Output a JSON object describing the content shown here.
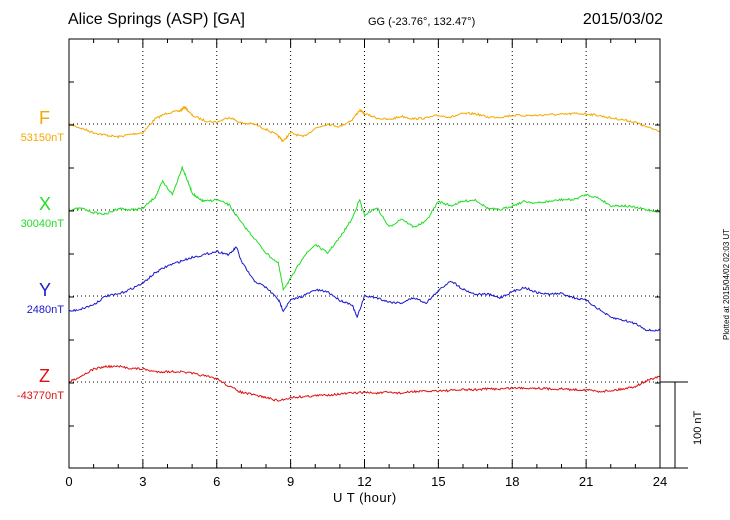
{
  "header": {
    "station": "Alice Springs (ASP)  [GA]",
    "coords": "GG (-23.76°, 132.47°)",
    "date": "2015/03/02"
  },
  "side_note": "Plotted at 2015/04/02 02:03 UT",
  "scale_bar": {
    "label": "100 nT",
    "value_nT": 100
  },
  "chart_data": {
    "type": "line",
    "title": "Alice Springs (ASP)  [GA]",
    "xlabel": "U T (hour)",
    "ylabel": "",
    "xlim": [
      0,
      24
    ],
    "xticks": [
      0,
      3,
      6,
      9,
      12,
      15,
      18,
      21,
      24
    ],
    "grid": true,
    "series": [
      {
        "name": "F",
        "baseline_label": "53150nT",
        "baseline": 53150,
        "color": "#f5a800",
        "x": [
          0,
          0.5,
          1,
          1.5,
          2,
          2.5,
          3,
          3.5,
          4,
          4.5,
          4.7,
          5,
          5.5,
          6,
          6.5,
          7,
          7.5,
          8,
          8.5,
          8.7,
          9,
          9.5,
          10,
          10.5,
          11,
          11.5,
          11.8,
          12,
          12.5,
          13,
          13.5,
          14,
          14.5,
          15,
          15.5,
          16,
          16.5,
          17,
          17.5,
          18,
          18.5,
          19,
          19.5,
          20,
          20.5,
          21,
          21.5,
          22,
          22.5,
          23,
          23.5,
          24
        ],
        "values": [
          53150,
          53145,
          53140,
          53137,
          53135,
          53138,
          53140,
          53156,
          53163,
          53165,
          53170,
          53160,
          53154,
          53152,
          53158,
          53151,
          53150,
          53144,
          53136,
          53130,
          53140,
          53135,
          53145,
          53150,
          53147,
          53155,
          53166,
          53162,
          53157,
          53155,
          53159,
          53156,
          53157,
          53160,
          53158,
          53162,
          53162,
          53158,
          53158,
          53160,
          53160,
          53160,
          53161,
          53161,
          53162,
          53162,
          53160,
          53157,
          53155,
          53152,
          53146,
          53142
        ]
      },
      {
        "name": "X",
        "baseline_label": "30040nT",
        "baseline": 30040,
        "color": "#22dd22",
        "x": [
          0,
          0.5,
          1,
          1.5,
          2,
          2.5,
          3,
          3.5,
          3.8,
          4.2,
          4.6,
          4.8,
          5,
          5.3,
          5.5,
          6,
          6.5,
          7,
          7.5,
          8,
          8.5,
          8.7,
          9,
          9.5,
          10,
          10.5,
          11,
          11.5,
          11.8,
          12,
          12.5,
          13,
          13.5,
          14,
          14.5,
          15,
          15.5,
          16,
          16.5,
          17,
          17.5,
          18,
          18.5,
          19,
          19.5,
          20,
          20.5,
          21,
          21.5,
          22,
          22.5,
          23,
          23.5,
          24
        ],
        "values": [
          30040,
          30042,
          30037,
          30035,
          30042,
          30040,
          30042,
          30055,
          30073,
          30058,
          30090,
          30075,
          30060,
          30052,
          30050,
          30052,
          30046,
          30025,
          30008,
          29990,
          29978,
          29948,
          29960,
          29985,
          30000,
          29990,
          30008,
          30030,
          30052,
          30034,
          30043,
          30020,
          30030,
          30020,
          30027,
          30050,
          30045,
          30050,
          30052,
          30042,
          30040,
          30045,
          30050,
          30048,
          30050,
          30052,
          30052,
          30058,
          30054,
          30045,
          30045,
          30043,
          30040,
          30038
        ]
      },
      {
        "name": "Y",
        "baseline_label": "2480nT",
        "baseline": 2480,
        "color": "#1a1acc",
        "x": [
          0,
          0.5,
          1,
          1.5,
          2,
          2.5,
          3,
          3.5,
          4,
          4.5,
          5,
          5.5,
          6,
          6.5,
          6.8,
          7,
          7.5,
          8,
          8.5,
          8.7,
          9,
          9.5,
          10,
          10.5,
          11,
          11.5,
          11.7,
          12,
          12.5,
          13,
          13.5,
          14,
          14.5,
          15,
          15.5,
          16,
          16.5,
          17,
          17.5,
          18,
          18.5,
          19,
          19.5,
          20,
          20.5,
          21,
          21.5,
          22,
          22.5,
          23,
          23.5,
          24
        ],
        "values": [
          2462,
          2465,
          2470,
          2480,
          2482,
          2488,
          2495,
          2507,
          2515,
          2520,
          2525,
          2528,
          2532,
          2528,
          2537,
          2520,
          2498,
          2490,
          2476,
          2463,
          2475,
          2480,
          2487,
          2485,
          2475,
          2470,
          2455,
          2480,
          2478,
          2473,
          2472,
          2478,
          2472,
          2486,
          2498,
          2488,
          2482,
          2482,
          2478,
          2485,
          2490,
          2484,
          2482,
          2483,
          2478,
          2475,
          2465,
          2455,
          2452,
          2448,
          2440,
          2440
        ]
      },
      {
        "name": "Z",
        "baseline_label": "-43770nT",
        "baseline": -43770,
        "color": "#dd1111",
        "x": [
          0,
          0.5,
          1,
          1.5,
          2,
          2.5,
          3,
          3.5,
          4,
          4.5,
          5,
          5.5,
          6,
          6.5,
          7,
          7.5,
          8,
          8.5,
          9,
          9.5,
          10,
          10.5,
          11,
          11.5,
          12,
          12.5,
          13,
          13.5,
          14,
          14.5,
          15,
          15.5,
          16,
          16.5,
          17,
          17.5,
          18,
          18.5,
          19,
          19.5,
          20,
          20.5,
          21,
          21.5,
          22,
          22.5,
          23,
          23.5,
          24
        ],
        "values": [
          -43770,
          -43763,
          -43755,
          -43752,
          -43752,
          -43754,
          -43755,
          -43758,
          -43758,
          -43758,
          -43760,
          -43763,
          -43766,
          -43775,
          -43782,
          -43785,
          -43788,
          -43792,
          -43788,
          -43787,
          -43786,
          -43785,
          -43784,
          -43783,
          -43782,
          -43783,
          -43782,
          -43783,
          -43781,
          -43781,
          -43780,
          -43780,
          -43779,
          -43779,
          -43778,
          -43778,
          -43777,
          -43777,
          -43777,
          -43778,
          -43778,
          -43779,
          -43779,
          -43781,
          -43780,
          -43778,
          -43775,
          -43768,
          -43763
        ]
      }
    ]
  }
}
